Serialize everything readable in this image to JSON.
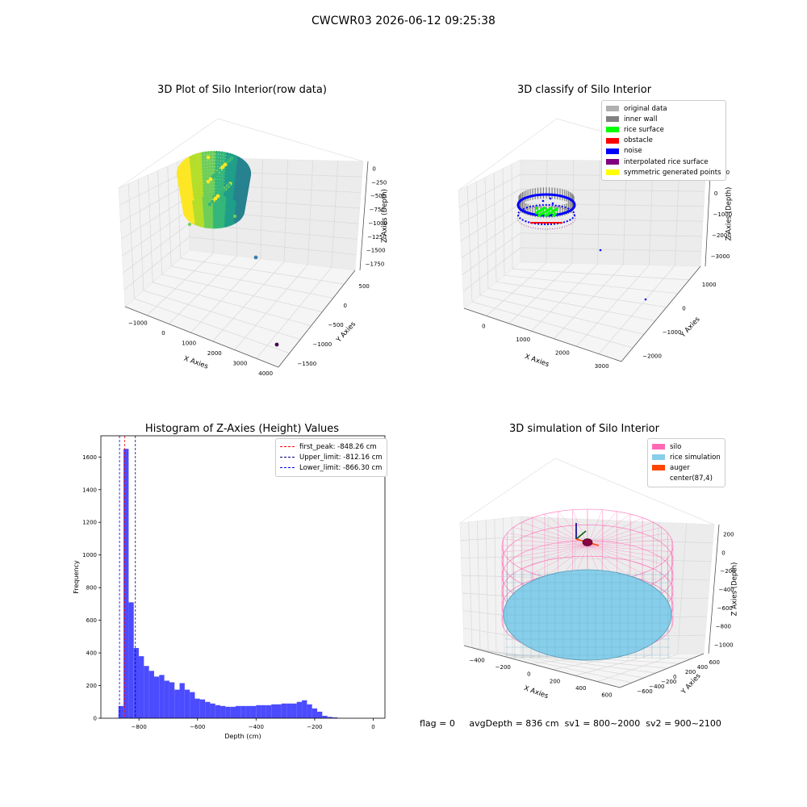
{
  "suptitle": "CWCWR03 2026-06-12 09:25:38",
  "chart_data": [
    {
      "id": "raw",
      "type": "scatter3d",
      "title": "3D Plot of Silo Interior(row data)",
      "xlabel": "X Axies",
      "ylabel": "Y Axies",
      "zlabel": "Z Axies (Depth)",
      "x_ticks": [
        "−1000",
        "0",
        "1000",
        "2000",
        "3000",
        "4000"
      ],
      "y_ticks": [
        "−1500",
        "−1000",
        "−500",
        "0",
        "500"
      ],
      "z_ticks": [
        "0",
        "−250",
        "−500",
        "−750",
        "−1000",
        "−1250",
        "−1500",
        "−1750"
      ],
      "colormap": "viridis",
      "outliers": [
        {
          "x": 2500,
          "y": 100,
          "z": -1500,
          "color": "#3b7fae"
        },
        {
          "x": 4000,
          "y": -1450,
          "z": -1750,
          "color": "#440154"
        }
      ]
    },
    {
      "id": "classify",
      "type": "scatter3d",
      "title": "3D classify of Silo Interior",
      "xlabel": "X Axies",
      "ylabel": "Y Axies",
      "zlabel": "Z Axies (Depth)",
      "x_ticks": [
        "0",
        "1000",
        "2000",
        "3000"
      ],
      "y_ticks": [
        "−2000",
        "−1000",
        "0",
        "1000"
      ],
      "z_ticks": [
        "1000",
        "0",
        "−1000",
        "−2000",
        "−3000"
      ],
      "legend": [
        {
          "label": "original data",
          "color": "#b0b0b0"
        },
        {
          "label": "inner wall",
          "color": "#808080"
        },
        {
          "label": "rice surface",
          "color": "#00ff00"
        },
        {
          "label": "obstacle",
          "color": "#ff0000"
        },
        {
          "label": "noise",
          "color": "#0000ff"
        },
        {
          "label": "interpolated rice surface",
          "color": "#800080"
        },
        {
          "label": "symmetric generated points",
          "color": "#ffff00"
        }
      ]
    },
    {
      "id": "hist",
      "type": "bar",
      "title": "Histogram of Z-Axies (Height) Values",
      "xlabel": "Depth (cm)",
      "ylabel": "Frequency",
      "xlim": [
        -930,
        40
      ],
      "ylim": [
        0,
        1730
      ],
      "x_ticks": [
        -800,
        -600,
        -400,
        -200,
        0
      ],
      "x_tick_labels": [
        "−800",
        "−600",
        "−400",
        "−200",
        "0"
      ],
      "y_ticks": [
        0,
        200,
        400,
        600,
        800,
        1000,
        1200,
        1400,
        1600
      ],
      "bar_color": "#4b4bff",
      "bin_start": -870,
      "bin_width": 17.4,
      "values": [
        75,
        1650,
        710,
        430,
        380,
        320,
        290,
        255,
        265,
        230,
        220,
        175,
        215,
        175,
        160,
        120,
        115,
        100,
        90,
        80,
        75,
        70,
        70,
        75,
        75,
        75,
        75,
        80,
        80,
        80,
        85,
        85,
        90,
        90,
        90,
        100,
        110,
        85,
        60,
        40,
        15,
        8,
        5
      ],
      "vlines": [
        {
          "x": -848.26,
          "color": "#ff0000",
          "label": "first_peak: -848.26 cm"
        },
        {
          "x": -812.16,
          "color": "#000080",
          "label": "Upper_limit: -812.16 cm"
        },
        {
          "x": -866.3,
          "color": "#0000ff",
          "label": "Lower_limit: -866.30 cm"
        }
      ]
    },
    {
      "id": "sim",
      "type": "surface3d",
      "title": "3D simulation of Silo Interior",
      "xlabel": "X Axies",
      "ylabel": "Y Axies",
      "zlabel": "Z Axies (Depth)",
      "x_ticks": [
        "−400",
        "−200",
        "0",
        "200",
        "400",
        "600"
      ],
      "y_ticks": [
        "−600",
        "−400",
        "−200",
        "0",
        "200",
        "400",
        "600"
      ],
      "z_ticks": [
        "200",
        "0",
        "−200",
        "−400",
        "−600",
        "−800",
        "−1000"
      ],
      "legend": [
        {
          "label": "silo",
          "color": "#ff69b4"
        },
        {
          "label": "rice simulation",
          "color": "#87ceeb"
        },
        {
          "label": "auger",
          "color": "#ff4500"
        },
        {
          "label": "center(87,4)",
          "color": "#ffffff"
        }
      ]
    }
  ],
  "footer": {
    "flag": "flag = 0",
    "avg": "avgDepth = 836 cm",
    "sv1": "sv1 = 800~2000",
    "sv2": "sv2 = 900~2100"
  }
}
